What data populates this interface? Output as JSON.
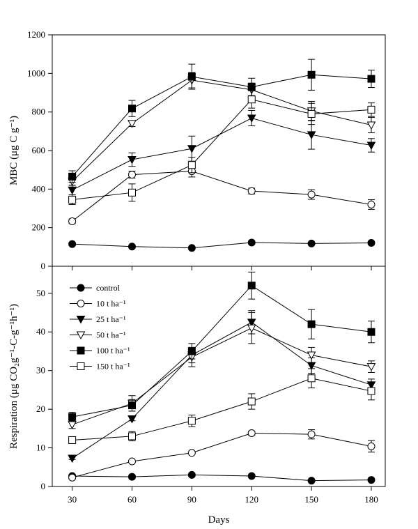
{
  "figure": {
    "xlabel": "Days"
  },
  "chart_data": [
    {
      "type": "line",
      "panel": "top",
      "ylabel": "MBC (μg C g⁻¹)",
      "x": [
        30,
        60,
        90,
        120,
        150,
        180
      ],
      "xlim": [
        20,
        187
      ],
      "ylim": [
        0,
        1200
      ],
      "yticks": [
        0,
        200,
        400,
        600,
        800,
        1000,
        1200
      ],
      "series": [
        {
          "name": "control",
          "marker": "filled-circle",
          "values": [
            115,
            102,
            95,
            123,
            118,
            121
          ],
          "errors": [
            8,
            6,
            6,
            8,
            6,
            8
          ]
        },
        {
          "name": "10 t ha⁻¹",
          "marker": "open-circle",
          "values": [
            233,
            475,
            493,
            390,
            372,
            320
          ],
          "errors": [
            12,
            18,
            30,
            15,
            25,
            25
          ]
        },
        {
          "name": "25 t ha⁻¹",
          "marker": "filled-triangle-down",
          "values": [
            395,
            553,
            610,
            768,
            682,
            627
          ],
          "errors": [
            25,
            35,
            65,
            40,
            75,
            35
          ]
        },
        {
          "name": "50 t ha⁻¹",
          "marker": "open-triangle-down",
          "values": [
            440,
            740,
            965,
            915,
            805,
            732
          ],
          "errors": [
            20,
            15,
            40,
            35,
            50,
            40
          ]
        },
        {
          "name": "100 t ha⁻¹",
          "marker": "filled-square",
          "values": [
            465,
            818,
            983,
            930,
            993,
            972
          ],
          "errors": [
            30,
            42,
            65,
            45,
            80,
            45
          ]
        },
        {
          "name": "150 t ha⁻¹",
          "marker": "open-square",
          "values": [
            345,
            382,
            525,
            865,
            790,
            812
          ],
          "errors": [
            25,
            45,
            40,
            45,
            55,
            35
          ]
        }
      ]
    },
    {
      "type": "line",
      "panel": "bottom",
      "ylabel": "Respiration (μg CO₂g⁻¹-C-g⁻¹h⁻¹)",
      "x": [
        30,
        60,
        90,
        120,
        150,
        180
      ],
      "xlim": [
        20,
        187
      ],
      "ylim": [
        0,
        57
      ],
      "yticks": [
        0,
        10,
        20,
        30,
        40,
        50
      ],
      "legend_position": "top-left",
      "series": [
        {
          "name": "control",
          "marker": "filled-circle",
          "values": [
            2.7,
            2.5,
            3.0,
            2.7,
            1.5,
            1.7
          ],
          "errors": [
            0.4,
            0.5,
            0.4,
            0.3,
            0.3,
            0.3
          ]
        },
        {
          "name": "10 t ha⁻¹",
          "marker": "open-circle",
          "values": [
            2.3,
            6.5,
            8.7,
            13.8,
            13.5,
            10.4
          ],
          "errors": [
            0.3,
            0.3,
            0.3,
            0.5,
            1.2,
            1.5
          ]
        },
        {
          "name": "25 t ha⁻¹",
          "marker": "filled-triangle-down",
          "values": [
            7.3,
            17.5,
            34.0,
            42.5,
            31.3,
            26.3
          ],
          "errors": [
            0.3,
            0.5,
            2.0,
            3.0,
            2.0,
            1.5
          ]
        },
        {
          "name": "50 t ha⁻¹",
          "marker": "open-triangle-down",
          "values": [
            16.0,
            21.5,
            33.5,
            41.0,
            34.0,
            31.0
          ],
          "errors": [
            1.0,
            2.0,
            2.5,
            4.0,
            2.0,
            1.5
          ]
        },
        {
          "name": "100 t ha⁻¹",
          "marker": "filled-square",
          "values": [
            18.0,
            21.0,
            35.0,
            52.0,
            42.0,
            40.0
          ],
          "errors": [
            1.2,
            1.5,
            2.0,
            3.5,
            3.8,
            2.8
          ]
        },
        {
          "name": "150 t ha⁻¹",
          "marker": "open-square",
          "values": [
            12.0,
            13.0,
            17.0,
            22.0,
            28.0,
            24.7
          ],
          "errors": [
            0.9,
            1.2,
            1.5,
            2.0,
            2.5,
            2.3
          ]
        }
      ]
    }
  ]
}
